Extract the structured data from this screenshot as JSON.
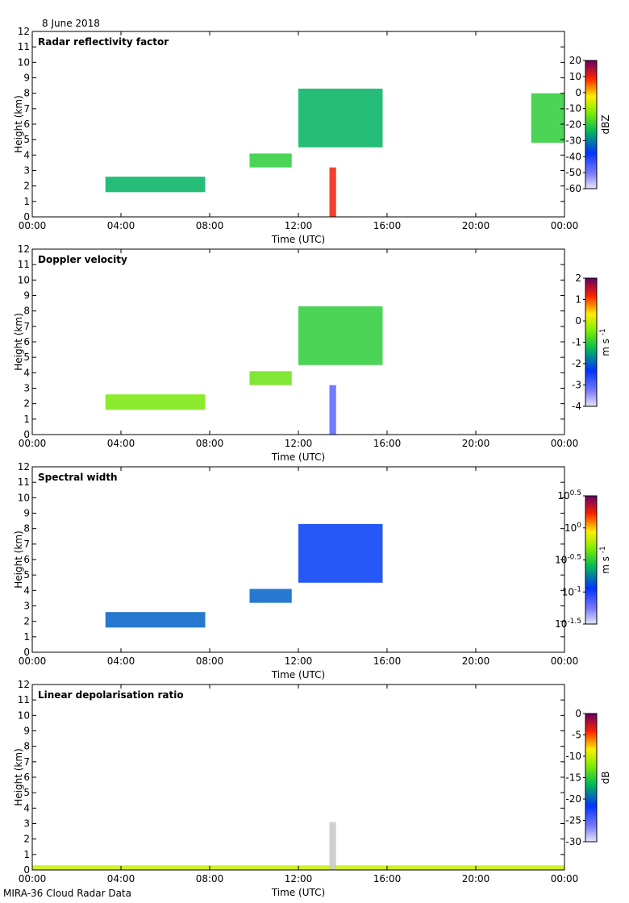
{
  "date_label": "8 June 2018",
  "footer": "MIRA-36 Cloud Radar Data",
  "chart_data": [
    {
      "type": "heatmap",
      "title": "Radar reflectivity factor",
      "xlabel": "Time (UTC)",
      "ylabel": "Height (km)",
      "x_ticks": [
        "00:00",
        "04:00",
        "08:00",
        "12:00",
        "16:00",
        "20:00",
        "00:00"
      ],
      "xlim_hours": [
        0,
        24
      ],
      "ylim": [
        0,
        12
      ],
      "y_ticks": [
        0,
        1,
        2,
        3,
        4,
        5,
        6,
        7,
        8,
        9,
        10,
        11,
        12
      ],
      "colorbar": {
        "label": "dBZ",
        "colormap": "rainbow (lavender-blue-green-yellow-red-purple)",
        "ticks": [
          "20",
          "10",
          "0",
          "-10",
          "-20",
          "-30",
          "-40",
          "-50",
          "-60"
        ]
      },
      "features": [
        {
          "desc": "low-level layer",
          "t_start": 3.3,
          "t_end": 7.8,
          "h_bottom": 1.6,
          "h_top": 2.6,
          "value": -25
        },
        {
          "desc": "mid-level layer",
          "t_start": 9.8,
          "t_end": 11.7,
          "h_bottom": 3.2,
          "h_top": 4.1,
          "value": -20
        },
        {
          "desc": "upper cloud",
          "t_start": 12.0,
          "t_end": 15.8,
          "h_bottom": 4.5,
          "h_top": 8.3,
          "value": -25
        },
        {
          "desc": "convective precipitation",
          "t_start": 13.4,
          "t_end": 13.7,
          "h_bottom": 0,
          "h_top": 3.2,
          "value": 10
        },
        {
          "desc": "cloud near end of day",
          "t_start": 22.5,
          "t_end": 24,
          "h_bottom": 4.8,
          "h_top": 8.0,
          "value": -20
        }
      ]
    },
    {
      "type": "heatmap",
      "title": "Doppler velocity",
      "xlabel": "Time (UTC)",
      "ylabel": "Height (km)",
      "x_ticks": [
        "00:00",
        "04:00",
        "08:00",
        "12:00",
        "16:00",
        "20:00",
        "00:00"
      ],
      "xlim_hours": [
        0,
        24
      ],
      "ylim": [
        0,
        12
      ],
      "y_ticks": [
        0,
        1,
        2,
        3,
        4,
        5,
        6,
        7,
        8,
        9,
        10,
        11,
        12
      ],
      "colorbar": {
        "label": "m s-1",
        "label_main": "m s",
        "label_sup": "-1",
        "colormap": "rainbow (lavender-blue-green-yellow-red-purple)",
        "ticks": [
          "2",
          "1",
          "0",
          "-1",
          "-2",
          "-3",
          "-4"
        ]
      },
      "features": [
        {
          "desc": "low-level layer",
          "t_start": 3.3,
          "t_end": 7.8,
          "h_bottom": 1.6,
          "h_top": 2.6,
          "value": -0.5
        },
        {
          "desc": "mid-level layer",
          "t_start": 9.8,
          "t_end": 11.7,
          "h_bottom": 3.2,
          "h_top": 4.1,
          "value": -0.6
        },
        {
          "desc": "upper cloud",
          "t_start": 12.0,
          "t_end": 15.8,
          "h_bottom": 4.5,
          "h_top": 8.3,
          "value": -1.0
        },
        {
          "desc": "precipitation fall streak",
          "t_start": 13.4,
          "t_end": 13.7,
          "h_bottom": 0,
          "h_top": 3.2,
          "value": -3.0
        }
      ]
    },
    {
      "type": "heatmap",
      "title": "Spectral width",
      "xlabel": "Time (UTC)",
      "ylabel": "Height (km)",
      "x_ticks": [
        "00:00",
        "04:00",
        "08:00",
        "12:00",
        "16:00",
        "20:00",
        "00:00"
      ],
      "xlim_hours": [
        0,
        24
      ],
      "ylim": [
        0,
        12
      ],
      "y_ticks": [
        0,
        1,
        2,
        3,
        4,
        5,
        6,
        7,
        8,
        9,
        10,
        11,
        12
      ],
      "colorbar": {
        "label": "m s-1",
        "label_main": "m s",
        "label_sup": "-1",
        "colormap": "rainbow, log scale",
        "ticks": [
          {
            "base": "10",
            "exp": "0.5"
          },
          {
            "base": "10",
            "exp": "0"
          },
          {
            "base": "10",
            "exp": "-0.5"
          },
          {
            "base": "10",
            "exp": "-1"
          },
          {
            "base": "10",
            "exp": "-1.5"
          }
        ]
      },
      "features": [
        {
          "desc": "low-level layer",
          "t_start": 3.3,
          "t_end": 7.8,
          "h_bottom": 1.6,
          "h_top": 2.6,
          "value": 0.15
        },
        {
          "desc": "mid-level layer",
          "t_start": 9.8,
          "t_end": 11.7,
          "h_bottom": 3.2,
          "h_top": 4.1,
          "value": 0.15
        },
        {
          "desc": "upper cloud",
          "t_start": 12.0,
          "t_end": 15.8,
          "h_bottom": 4.5,
          "h_top": 8.3,
          "value": 0.12
        }
      ]
    },
    {
      "type": "heatmap",
      "title": "Linear depolarisation ratio",
      "xlabel": "Time (UTC)",
      "ylabel": "Height (km)",
      "x_ticks": [
        "00:00",
        "04:00",
        "08:00",
        "12:00",
        "16:00",
        "20:00",
        "00:00"
      ],
      "xlim_hours": [
        0,
        24
      ],
      "ylim": [
        0,
        12
      ],
      "y_ticks": [
        0,
        1,
        2,
        3,
        4,
        5,
        6,
        7,
        8,
        9,
        10,
        11,
        12
      ],
      "colorbar": {
        "label": "dB",
        "colormap": "rainbow (lavender-blue-green-yellow-red-purple)",
        "ticks": [
          "0",
          "-5",
          "-10",
          "-15",
          "-20",
          "-25",
          "-30"
        ]
      },
      "features": [
        {
          "desc": "sparse returns near surface",
          "t_start": 0,
          "t_end": 24,
          "h_bottom": 0,
          "h_top": 0.3,
          "value": -10
        },
        {
          "desc": "gray precipitation column",
          "t_start": 13.4,
          "t_end": 13.7,
          "h_bottom": 0,
          "h_top": 3.1,
          "value": null
        }
      ]
    }
  ]
}
